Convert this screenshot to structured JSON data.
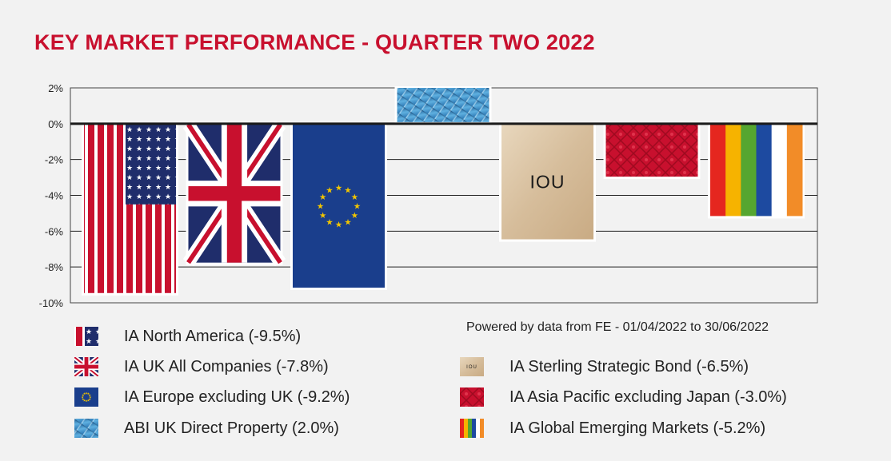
{
  "title": "KEY MARKET PERFORMANCE - QUARTER TWO 2022",
  "source": "Powered by data from FE - 01/04/2022 to 30/06/2022",
  "chart_data": {
    "type": "bar",
    "title": "KEY MARKET PERFORMANCE - QUARTER TWO 2022",
    "ylim": [
      -10,
      2
    ],
    "yticks": [
      "2%",
      "0%",
      "-2%",
      "-4%",
      "-6%",
      "-8%",
      "-10%"
    ],
    "grid": true,
    "legend_position": "bottom",
    "categories": [
      "IA North America",
      "IA UK All Companies",
      "IA Europe excluding UK",
      "ABI UK Direct Property",
      "IA Sterling Strategic Bond",
      "IA Asia Pacific excluding Japan",
      "IA Global Emerging Markets"
    ],
    "values": [
      -9.5,
      -7.8,
      -9.2,
      2.0,
      -6.5,
      -3.0,
      -5.2
    ],
    "fills": [
      "us-flag",
      "uk-flag",
      "eu-flag",
      "glass-building",
      "iou-note",
      "red-silk",
      "rainbow-stripes"
    ],
    "bar_text": [
      "",
      "",
      "",
      "",
      "IOU",
      "",
      ""
    ]
  },
  "legend": [
    {
      "label": "IA North America (-9.5%)",
      "icon": "us-flag-icon",
      "fill": "us-flag"
    },
    {
      "label": "IA UK All Companies (-7.8%)",
      "icon": "uk-flag-icon",
      "fill": "uk-flag"
    },
    {
      "label": "IA Europe excluding UK (-9.2%)",
      "icon": "eu-flag-icon",
      "fill": "eu-flag"
    },
    {
      "label": "ABI UK Direct Property (2.0%)",
      "icon": "glass-building-icon",
      "fill": "glass-building"
    },
    {
      "label": "IA Sterling Strategic Bond (-6.5%)",
      "icon": "iou-note-icon",
      "fill": "iou-note",
      "text": "IOU"
    },
    {
      "label": "IA Asia Pacific excluding Japan (-3.0%)",
      "icon": "red-silk-icon",
      "fill": "red-silk"
    },
    {
      "label": "IA Global Emerging Markets (-5.2%)",
      "icon": "rainbow-stripes-icon",
      "fill": "rainbow-stripes"
    }
  ],
  "colors": {
    "title": "#c8102e",
    "grid": "#222222",
    "us_red": "#c8102e",
    "us_blue": "#1f2d6b",
    "uk_blue": "#1f2d6b",
    "eu_blue": "#1a3e8c",
    "eu_star": "#f2c500",
    "glass": "#3a8cc7",
    "iou": "#d9c2a2",
    "silk": "#c8102e",
    "rainbow": [
      "#e5261f",
      "#f6b300",
      "#55a630",
      "#1d4aa0",
      "#ffffff",
      "#f28c28"
    ]
  }
}
